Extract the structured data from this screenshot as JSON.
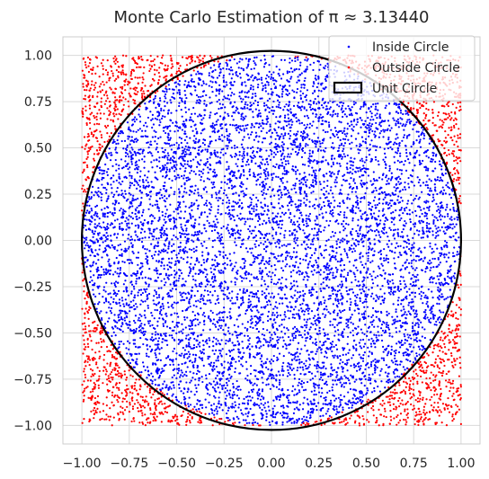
{
  "chart_data": {
    "type": "scatter",
    "title": "Monte Carlo Estimation of π ≈ 3.13440",
    "xlabel": "",
    "ylabel": "",
    "xlim": [
      -1.1,
      1.1
    ],
    "ylim": [
      -1.1,
      1.1
    ],
    "xticks": [
      "−1.00",
      "−0.75",
      "−0.50",
      "−0.25",
      "0.00",
      "0.25",
      "0.50",
      "0.75",
      "1.00"
    ],
    "yticks": [
      "1.00",
      "0.75",
      "0.50",
      "0.25",
      "0.00",
      "−0.25",
      "−0.50",
      "−0.75",
      "−1.00"
    ],
    "xtick_values": [
      -1,
      -0.75,
      -0.5,
      -0.25,
      0,
      0.25,
      0.5,
      0.75,
      1
    ],
    "ytick_values": [
      1,
      0.75,
      0.5,
      0.25,
      0,
      -0.25,
      -0.5,
      -0.75,
      -1
    ],
    "grid": true,
    "legend_position": "top-right",
    "sample_count": 10000,
    "pi_estimate": 3.1344,
    "series": [
      {
        "name": "Inside Circle",
        "color": "#0000ff",
        "marker": "point",
        "region": "x^2 + y^2 <= 1"
      },
      {
        "name": "Outside Circle",
        "color": "#ff0000",
        "marker": "point",
        "region": "x^2 + y^2 > 1, within [-1,1] square"
      }
    ],
    "circle": {
      "name": "Unit Circle",
      "center": [
        0,
        0
      ],
      "radius": 1,
      "color": "#000000"
    }
  }
}
